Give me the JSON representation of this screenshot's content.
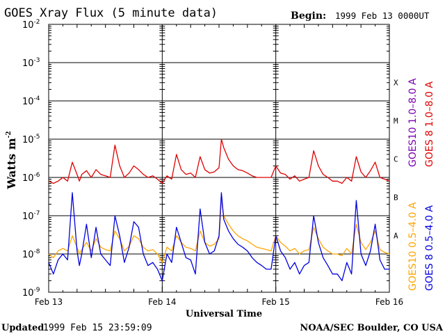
{
  "header": {
    "title": "GOES Xray Flux (5 minute data)",
    "begin_label": "Begin:",
    "begin_value": "1999 Feb 13 0000UT"
  },
  "footer": {
    "updated_label": "Updated",
    "updated_value": "1999 Feb 15 23:59:09",
    "credit": "NOAA/SEC Boulder, CO USA"
  },
  "colors": {
    "goes8_long": "#e00000",
    "goes10_long": "#7a00b0",
    "goes8_short": "#0000e0",
    "goes10_short": "#ffa500"
  },
  "chart_data": {
    "type": "line",
    "title": "GOES Xray Flux (5 minute data)",
    "xlabel": "Universal Time",
    "ylabel": "Watts m",
    "ylabel_sup": "-2",
    "y_scale": "log",
    "ylim": [
      1e-09,
      0.01
    ],
    "xlim": [
      0,
      72
    ],
    "x_unit": "hours since 1999 Feb 13 00:00 UT",
    "x_ticks": [
      {
        "x": 0,
        "label": "Feb 13"
      },
      {
        "x": 24,
        "label": "Feb 14"
      },
      {
        "x": 48,
        "label": "Feb 15"
      },
      {
        "x": 72,
        "label": "Feb 16"
      }
    ],
    "y_ticks": [
      {
        "exp": -2,
        "base": "10",
        "label": "-2"
      },
      {
        "exp": -3,
        "base": "10",
        "label": "-3"
      },
      {
        "exp": -4,
        "base": "10",
        "label": "-4"
      },
      {
        "exp": -5,
        "base": "10",
        "label": "-5"
      },
      {
        "exp": -6,
        "base": "10",
        "label": "-6"
      },
      {
        "exp": -7,
        "base": "10",
        "label": "-7"
      },
      {
        "exp": -8,
        "base": "10",
        "label": "-8"
      },
      {
        "exp": -9,
        "base": "10",
        "label": "-9"
      }
    ],
    "flare_classes": [
      {
        "label": "X",
        "exp": -3.5
      },
      {
        "label": "M",
        "exp": -4.5
      },
      {
        "label": "C",
        "exp": -5.5
      },
      {
        "label": "B",
        "exp": -6.5
      },
      {
        "label": "A",
        "exp": -7.5
      }
    ],
    "grid": "horizontal lines at decades 1e-3 to 1e-8",
    "legend_right": [
      {
        "label": "GOES10 1.0–8.0 A",
        "color": "#7a00b0"
      },
      {
        "label": "GOES 8 1.0–8.0 A",
        "color": "#e00000"
      },
      {
        "label": "GOES10 0.5–4.0 A",
        "color": "#ffa500"
      },
      {
        "label": "GOES 8 0.5–4.0 A",
        "color": "#0000e0"
      }
    ],
    "series": [
      {
        "name": "GOES 8 1.0–8.0 A",
        "color": "#e00000",
        "x": [
          0,
          1,
          2,
          3,
          4,
          5,
          6,
          6.5,
          7,
          8,
          9,
          10,
          11,
          12,
          13,
          14,
          15,
          16,
          17,
          18,
          19,
          20,
          21,
          22,
          23,
          24,
          25,
          26,
          27,
          28,
          29,
          30,
          31,
          32,
          33,
          34,
          35,
          36,
          36.5,
          37,
          38,
          39,
          40,
          41,
          42,
          43,
          44,
          45,
          46,
          47,
          48,
          49,
          50,
          51,
          52,
          53,
          54,
          55,
          56,
          57,
          58,
          59,
          60,
          61,
          62,
          63,
          64,
          65,
          66,
          67,
          68,
          69,
          70,
          71,
          72
        ],
        "y": [
          8e-07,
          7e-07,
          8e-07,
          1e-06,
          8e-07,
          2.5e-06,
          1.2e-06,
          8e-07,
          1.2e-06,
          1.5e-06,
          1e-06,
          1.6e-06,
          1.2e-06,
          1.1e-06,
          1e-06,
          7e-06,
          2e-06,
          1e-06,
          1.3e-06,
          2e-06,
          1.6e-06,
          1.2e-06,
          1e-06,
          1.1e-06,
          9e-07,
          7e-07,
          1.1e-06,
          9e-07,
          4e-06,
          1.6e-06,
          1.2e-06,
          1.3e-06,
          1e-06,
          3.5e-06,
          1.6e-06,
          1.3e-06,
          1.4e-06,
          1.8e-06,
          1e-05,
          6e-06,
          3e-06,
          2e-06,
          1.6e-06,
          1.5e-06,
          1.3e-06,
          1.1e-06,
          1e-06,
          1e-06,
          1e-06,
          1e-06,
          2e-06,
          1.3e-06,
          1.2e-06,
          9e-07,
          1.1e-06,
          8e-07,
          9e-07,
          1e-06,
          5e-06,
          2e-06,
          1.2e-06,
          1e-06,
          8e-07,
          8e-07,
          7e-07,
          1e-06,
          8e-07,
          3.5e-06,
          1.4e-06,
          1e-06,
          1.5e-06,
          2.5e-06,
          1e-06,
          9e-07,
          8e-07
        ]
      },
      {
        "name": "GOES10 0.5–4.0 A",
        "color": "#ffa500",
        "x": [
          0,
          1,
          2,
          3,
          4,
          5,
          6,
          6.5,
          7,
          8,
          9,
          10,
          11,
          12,
          13,
          14,
          15,
          16,
          17,
          18,
          19,
          20,
          21,
          22,
          23,
          24,
          25,
          26,
          27,
          28,
          29,
          30,
          31,
          32,
          33,
          34,
          35,
          36,
          36.5,
          37,
          38,
          39,
          40,
          41,
          42,
          43,
          44,
          45,
          46,
          47,
          48,
          49,
          50,
          51,
          52,
          53,
          54,
          55,
          56,
          57,
          58,
          59,
          60,
          61,
          62,
          63,
          64,
          65,
          66,
          67,
          68,
          69,
          70,
          71,
          72
        ],
        "y": [
          1e-08,
          8e-09,
          1.2e-08,
          1.4e-08,
          1.2e-08,
          3e-08,
          1.5e-08,
          1e-08,
          1.3e-08,
          2e-08,
          1.2e-08,
          2.5e-08,
          1.5e-08,
          1.3e-08,
          1.2e-08,
          4e-08,
          2.5e-08,
          1.2e-08,
          1.6e-08,
          3e-08,
          2.5e-08,
          1.5e-08,
          1.2e-08,
          1.3e-08,
          1e-08,
          6e-09,
          1.5e-08,
          1.2e-08,
          3e-08,
          2e-08,
          1.5e-08,
          1.4e-08,
          1.2e-08,
          4e-08,
          2e-08,
          1.6e-08,
          1.8e-08,
          2.5e-08,
          2.5e-07,
          1e-07,
          6e-08,
          4e-08,
          3e-08,
          2.5e-08,
          2.2e-08,
          1.8e-08,
          1.5e-08,
          1.4e-08,
          1.3e-08,
          1.2e-08,
          3e-08,
          2e-08,
          1.6e-08,
          1.2e-08,
          1.4e-08,
          1e-08,
          1.2e-08,
          1.3e-08,
          5e-08,
          2.5e-08,
          1.5e-08,
          1.2e-08,
          1e-08,
          1e-08,
          9e-09,
          1.4e-08,
          1e-08,
          6e-08,
          2e-08,
          1.3e-08,
          2e-08,
          4e-08,
          1.3e-08,
          1.1e-08,
          1e-08
        ]
      },
      {
        "name": "GOES 8 0.5–4.0 A",
        "color": "#0000e0",
        "x": [
          0,
          1,
          2,
          3,
          4,
          5,
          6,
          6.5,
          7,
          8,
          9,
          10,
          11,
          12,
          13,
          14,
          15,
          16,
          17,
          18,
          19,
          20,
          21,
          22,
          23,
          24,
          25,
          26,
          27,
          28,
          29,
          30,
          31,
          32,
          33,
          34,
          35,
          36,
          36.5,
          37,
          38,
          39,
          40,
          41,
          42,
          43,
          44,
          45,
          46,
          47,
          48,
          49,
          50,
          51,
          52,
          53,
          54,
          55,
          56,
          57,
          58,
          59,
          60,
          61,
          62,
          63,
          64,
          65,
          66,
          67,
          68,
          69,
          70,
          71,
          72
        ],
        "y": [
          6e-09,
          3e-09,
          7e-09,
          1e-08,
          7e-09,
          4e-07,
          1.2e-08,
          5e-09,
          1e-08,
          6e-08,
          8e-09,
          5e-08,
          1e-08,
          7e-09,
          5e-09,
          1e-07,
          3e-08,
          6e-09,
          1.5e-08,
          7e-08,
          5e-08,
          1e-08,
          5e-09,
          6e-09,
          4e-09,
          2e-09,
          1e-08,
          6e-09,
          5e-08,
          2e-08,
          8e-09,
          7e-09,
          3e-09,
          1.5e-07,
          2e-08,
          1e-08,
          1.2e-08,
          3e-08,
          4e-07,
          8e-08,
          4e-08,
          2.5e-08,
          1.8e-08,
          1.5e-08,
          1.2e-08,
          8e-09,
          6e-09,
          5e-09,
          4e-09,
          4e-09,
          3e-08,
          1.2e-08,
          8e-09,
          4e-09,
          6e-09,
          3e-09,
          5e-09,
          6e-09,
          1e-07,
          2e-08,
          8e-09,
          5e-09,
          3e-09,
          3e-09,
          2e-09,
          6e-09,
          3e-09,
          2.5e-07,
          1e-08,
          5e-09,
          1.2e-08,
          6e-08,
          7e-09,
          4e-09,
          4e-09
        ]
      }
    ]
  }
}
